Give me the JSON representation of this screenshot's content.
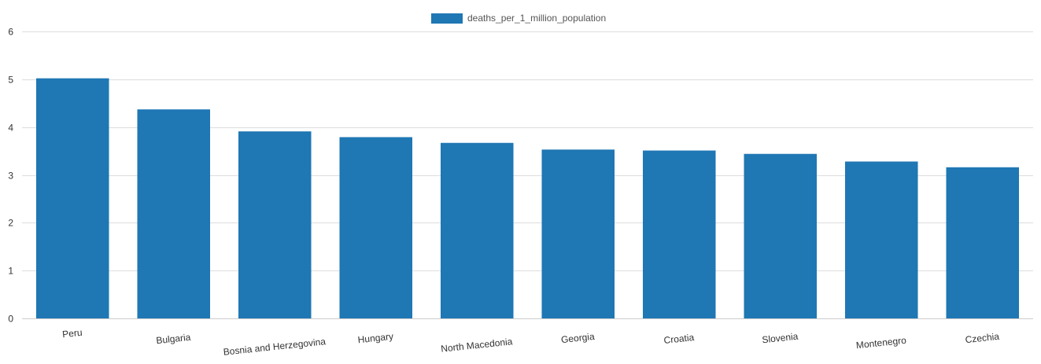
{
  "chart_data": {
    "type": "bar",
    "categories": [
      "Peru",
      "Bulgaria",
      "Bosnia and Herzegovina",
      "Hungary",
      "North Macedonia",
      "Georgia",
      "Croatia",
      "Slovenia",
      "Montenegro",
      "Czechia"
    ],
    "series": [
      {
        "name": "deaths_per_1_million_population",
        "values": [
          5.02,
          4.37,
          3.91,
          3.79,
          3.67,
          3.53,
          3.51,
          3.44,
          3.28,
          3.16
        ],
        "color": "#1f77b4"
      }
    ],
    "ylim": [
      0,
      6
    ],
    "yticks": [
      0,
      1,
      2,
      3,
      4,
      5,
      6
    ],
    "grid": true,
    "legend_position": "top-center",
    "title": "",
    "xlabel": "",
    "ylabel": ""
  }
}
